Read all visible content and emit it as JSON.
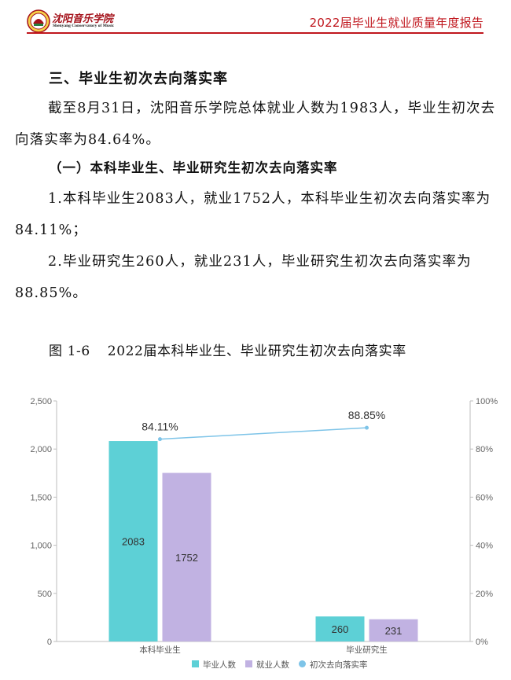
{
  "header": {
    "logo_title": "沈阳音乐学院",
    "logo_subtitle": "Shenyang Conservatory of Music",
    "report_title": "2022届毕业生就业质量年度报告"
  },
  "content": {
    "section_heading": "三、毕业生初次去向落实率",
    "para1": "截至8月31日，沈阳音乐学院总体就业人数为1983人，毕业生初次去向落实率为84.64%。",
    "sub_heading": "（一）本科毕业生、毕业研究生初次去向落实率",
    "para2": "1.本科毕业生2083人，就业1752人，本科毕业生初次去向落实率为84.11%；",
    "para3": "2.毕业研究生260人，就业231人，毕业研究生初次去向落实率为88.85%。"
  },
  "figure": {
    "number": "图 1-6",
    "title": "2022届本科毕业生、毕业研究生初次去向落实率"
  },
  "chart_data": {
    "type": "bar",
    "categories": [
      "本科毕业生",
      "毕业研究生"
    ],
    "series": [
      {
        "name": "毕业人数",
        "type": "bar",
        "axis": "left",
        "color": "#5dd0d6",
        "values": [
          2083,
          260
        ]
      },
      {
        "name": "就业人数",
        "type": "bar",
        "axis": "left",
        "color": "#c1b2e2",
        "values": [
          1752,
          231
        ]
      },
      {
        "name": "初次去向落实率",
        "type": "line",
        "axis": "right",
        "color": "#7ec4e8",
        "values": [
          84.11,
          88.85
        ],
        "labels": [
          "84.11%",
          "88.85%"
        ]
      }
    ],
    "left_axis": {
      "ylim": [
        0,
        2500
      ],
      "ticks": [
        "0",
        "500",
        "1,000",
        "1,500",
        "2,000",
        "2,500"
      ]
    },
    "right_axis": {
      "ylim": [
        0,
        100
      ],
      "ticks": [
        "0%",
        "20%",
        "40%",
        "60%",
        "80%",
        "100%"
      ]
    },
    "legend_position": "bottom",
    "grid": false
  }
}
